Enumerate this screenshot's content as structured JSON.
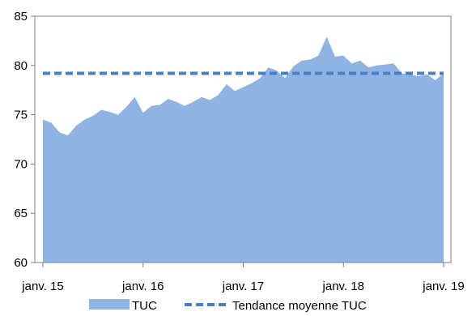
{
  "chart_data": {
    "type": "area",
    "title": "",
    "xlabel": "",
    "ylabel": "",
    "ylim": [
      60,
      85
    ],
    "yticks": [
      60,
      65,
      70,
      75,
      80,
      85
    ],
    "x_tick_labels": [
      "janv. 15",
      "janv. 16",
      "janv. 17",
      "janv. 18",
      "janv. 19"
    ],
    "grid": false,
    "legend_position": "bottom",
    "series": [
      {
        "name": "TUC",
        "style": "area",
        "color": "#8FB4E3",
        "x": [
          "2015-01",
          "2015-02",
          "2015-03",
          "2015-04",
          "2015-05",
          "2015-06",
          "2015-07",
          "2015-08",
          "2015-09",
          "2015-10",
          "2015-11",
          "2015-12",
          "2016-01",
          "2016-02",
          "2016-03",
          "2016-04",
          "2016-05",
          "2016-06",
          "2016-07",
          "2016-08",
          "2016-09",
          "2016-10",
          "2016-11",
          "2016-12",
          "2017-01",
          "2017-02",
          "2017-03",
          "2017-04",
          "2017-05",
          "2017-06",
          "2017-07",
          "2017-08",
          "2017-09",
          "2017-10",
          "2017-11",
          "2017-12",
          "2018-01",
          "2018-02",
          "2018-03",
          "2018-04",
          "2018-05",
          "2018-06",
          "2018-07",
          "2018-08",
          "2018-09",
          "2018-10",
          "2018-11",
          "2018-12",
          "2019-01"
        ],
        "values": [
          74.5,
          74.2,
          73.2,
          72.9,
          73.9,
          74.5,
          74.9,
          75.5,
          75.3,
          75.0,
          75.8,
          76.8,
          75.2,
          75.9,
          76.0,
          76.6,
          76.3,
          75.9,
          76.3,
          76.8,
          76.5,
          77.0,
          78.1,
          77.4,
          77.8,
          78.2,
          78.7,
          79.8,
          79.5,
          78.7,
          79.9,
          80.5,
          80.6,
          81.0,
          82.9,
          80.9,
          81.0,
          80.2,
          80.5,
          79.8,
          80.0,
          80.1,
          80.2,
          79.2,
          79.1,
          78.9,
          79.1,
          78.5,
          79.2
        ]
      },
      {
        "name": "Tendance moyenne TUC",
        "style": "dashed-line",
        "color": "#4A7FC1",
        "value": 79.2
      }
    ]
  }
}
